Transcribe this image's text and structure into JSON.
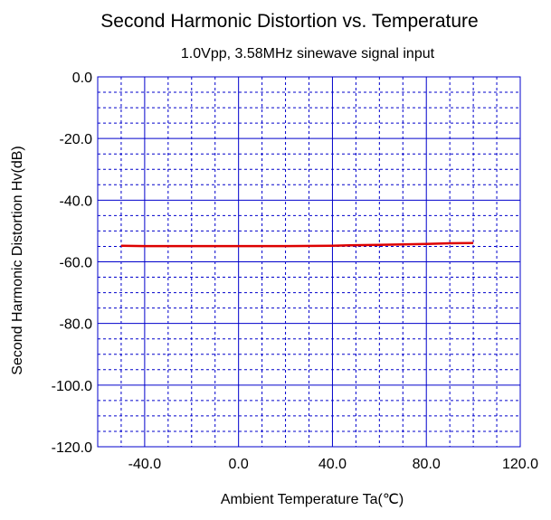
{
  "chart_data": {
    "type": "line",
    "title": "Second Harmonic Distortion vs. Temperature",
    "subtitle": "1.0Vpp, 3.58MHz sinewave signal input",
    "xlabel": "Ambient Temperature  Ta(℃)",
    "ylabel": "Second Harmonic Distortion  Hv(dB)",
    "xlim": [
      -60,
      120
    ],
    "ylim": [
      -120,
      0
    ],
    "x_major_ticks": [
      -40,
      0,
      40,
      80,
      120
    ],
    "y_major_ticks": [
      0,
      -20,
      -40,
      -60,
      -80,
      -100,
      -120
    ],
    "x_tick_labels": [
      "-40.0",
      "0.0",
      "40.0",
      "80.0",
      "120.0"
    ],
    "y_tick_labels": [
      "0.0",
      "-20.0",
      "-40.0",
      "-60.0",
      "-80.0",
      "-100.0",
      "-120.0"
    ],
    "x_minor_step": 10,
    "y_minor_step": 5,
    "grid": true,
    "colors": {
      "frame": "#0000cc",
      "grid": "#0000cc",
      "series": "#dd0000"
    },
    "series": [
      {
        "x": [
          -50,
          -40,
          -20,
          0,
          20,
          40,
          50,
          60,
          80,
          90,
          100
        ],
        "y": [
          -54.8,
          -54.9,
          -54.9,
          -54.9,
          -54.9,
          -54.8,
          -54.6,
          -54.5,
          -54.2,
          -54.0,
          -53.9
        ]
      }
    ]
  }
}
